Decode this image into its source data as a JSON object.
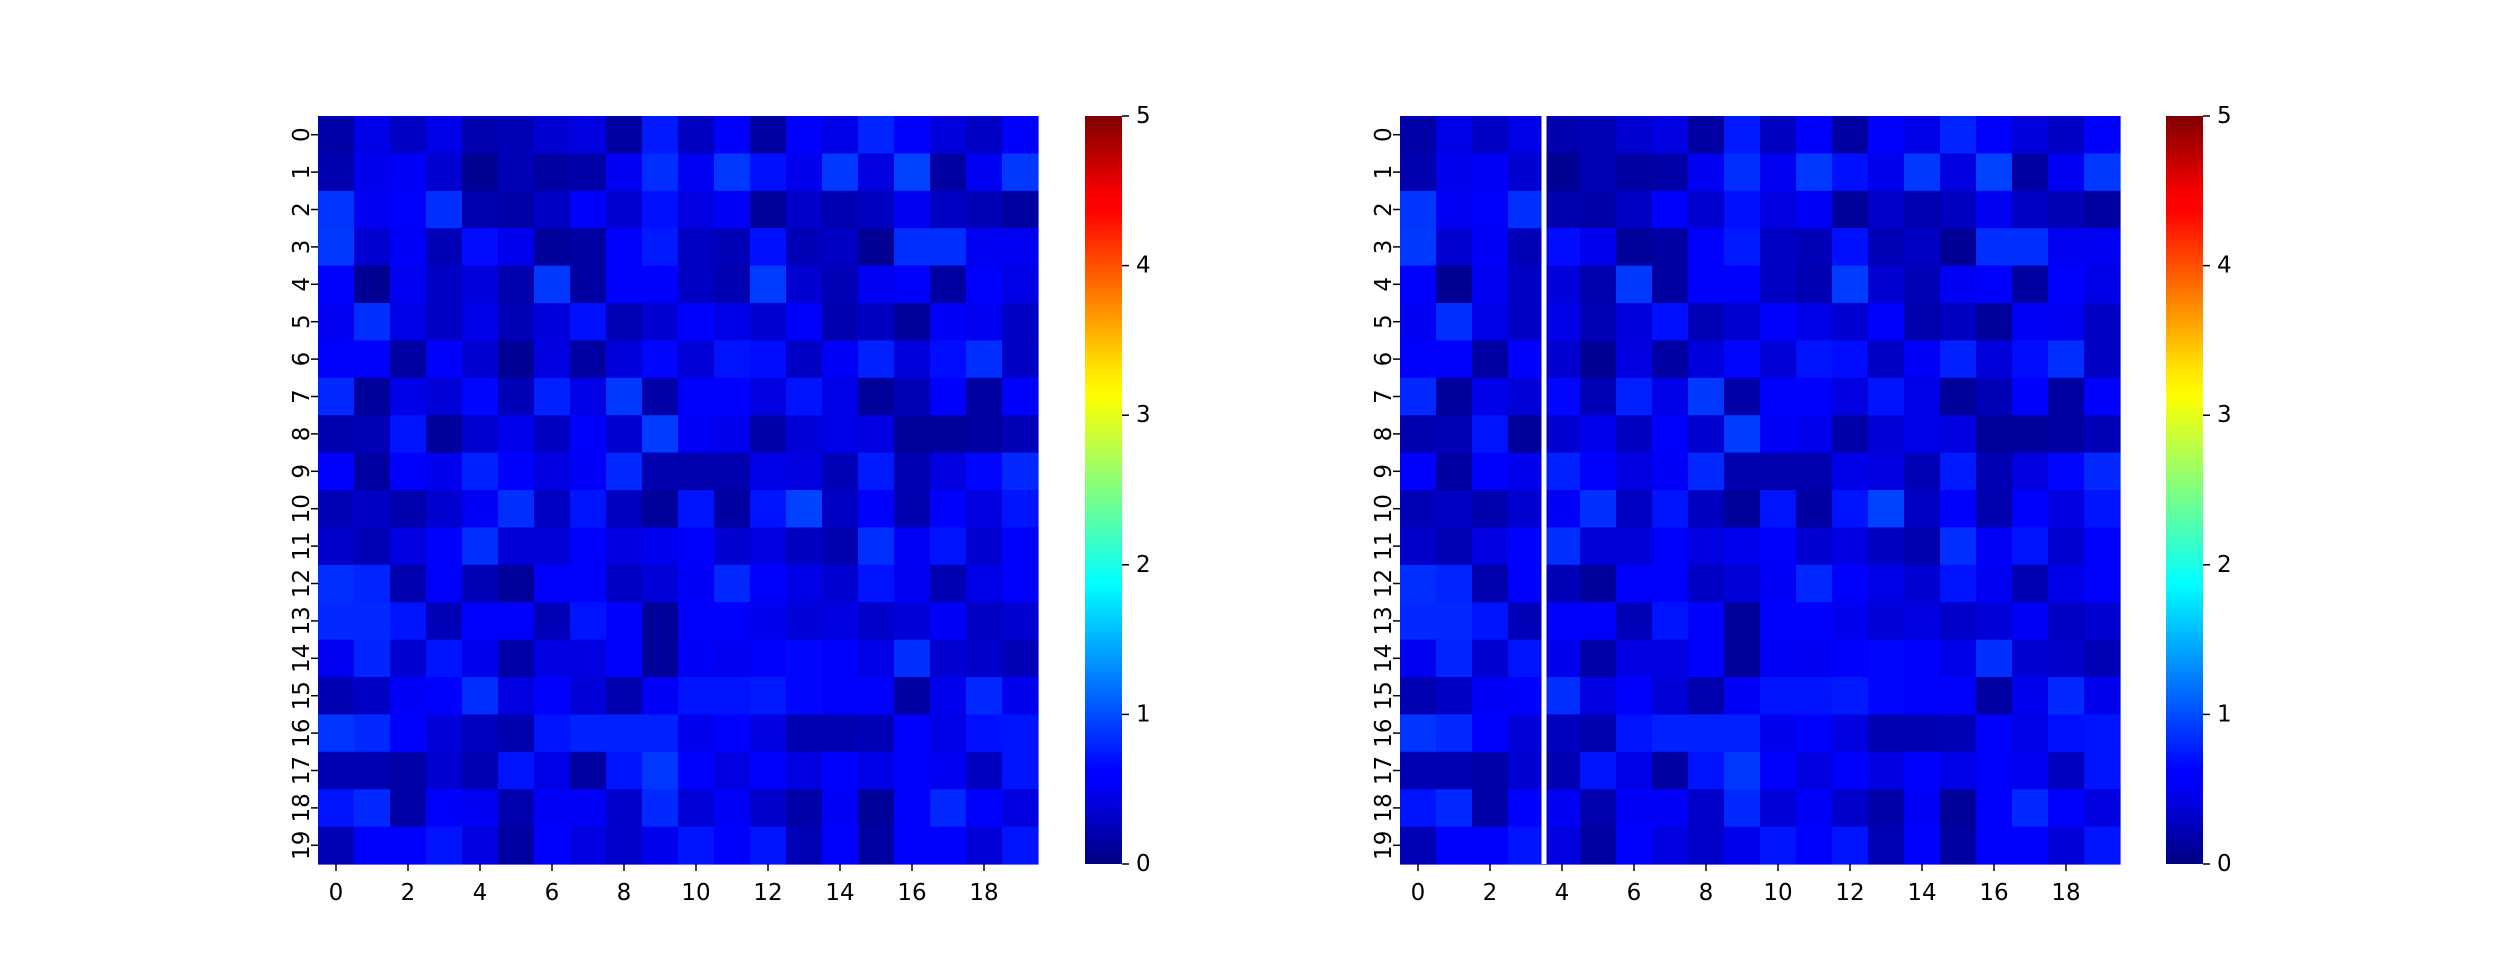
{
  "chart_data": [
    {
      "type": "heatmap",
      "panel": "left",
      "colormap": "jet",
      "vmin": 0,
      "vmax": 5,
      "n_rows": 20,
      "n_cols": 20,
      "x_ticks": [
        "0",
        "2",
        "4",
        "6",
        "8",
        "10",
        "12",
        "14",
        "16",
        "18"
      ],
      "y_ticks": [
        "0",
        "1",
        "2",
        "3",
        "4",
        "5",
        "6",
        "7",
        "8",
        "9",
        "10",
        "11",
        "12",
        "13",
        "14",
        "15",
        "16",
        "17",
        "18",
        "19"
      ],
      "colorbar_ticks": [
        "0",
        "1",
        "2",
        "3",
        "4",
        "5"
      ],
      "values": [
        [
          0.18,
          0.45,
          0.3,
          0.45,
          0.2,
          0.25,
          0.35,
          0.42,
          0.15,
          0.75,
          0.28,
          0.55,
          0.15,
          0.6,
          0.45,
          0.8,
          0.62,
          0.4,
          0.3,
          0.6
        ],
        [
          0.2,
          0.48,
          0.52,
          0.35,
          0.08,
          0.25,
          0.15,
          0.18,
          0.5,
          0.85,
          0.5,
          0.9,
          0.7,
          0.48,
          0.9,
          0.42,
          0.95,
          0.15,
          0.5,
          0.9
        ],
        [
          0.88,
          0.5,
          0.55,
          0.85,
          0.2,
          0.18,
          0.3,
          0.6,
          0.35,
          0.7,
          0.42,
          0.52,
          0.12,
          0.32,
          0.22,
          0.28,
          0.5,
          0.3,
          0.25,
          0.15
        ],
        [
          0.9,
          0.35,
          0.52,
          0.25,
          0.68,
          0.48,
          0.12,
          0.15,
          0.6,
          0.75,
          0.3,
          0.25,
          0.7,
          0.25,
          0.3,
          0.1,
          0.85,
          0.85,
          0.5,
          0.5
        ],
        [
          0.55,
          0.08,
          0.5,
          0.3,
          0.4,
          0.2,
          0.9,
          0.15,
          0.55,
          0.55,
          0.3,
          0.22,
          0.92,
          0.35,
          0.25,
          0.5,
          0.6,
          0.15,
          0.55,
          0.45
        ],
        [
          0.5,
          0.85,
          0.45,
          0.3,
          0.45,
          0.25,
          0.4,
          0.7,
          0.25,
          0.35,
          0.55,
          0.45,
          0.35,
          0.55,
          0.2,
          0.28,
          0.12,
          0.52,
          0.5,
          0.3
        ],
        [
          0.62,
          0.6,
          0.15,
          0.62,
          0.35,
          0.1,
          0.42,
          0.15,
          0.4,
          0.65,
          0.38,
          0.72,
          0.68,
          0.3,
          0.52,
          0.78,
          0.4,
          0.68,
          0.85,
          0.3
        ],
        [
          0.82,
          0.12,
          0.45,
          0.38,
          0.65,
          0.25,
          0.78,
          0.45,
          0.9,
          0.18,
          0.55,
          0.62,
          0.42,
          0.72,
          0.45,
          0.12,
          0.25,
          0.62,
          0.15,
          0.6
        ],
        [
          0.2,
          0.25,
          0.72,
          0.12,
          0.35,
          0.48,
          0.28,
          0.55,
          0.35,
          0.92,
          0.52,
          0.48,
          0.18,
          0.38,
          0.45,
          0.42,
          0.12,
          0.12,
          0.15,
          0.25
        ],
        [
          0.62,
          0.15,
          0.55,
          0.48,
          0.78,
          0.55,
          0.42,
          0.52,
          0.82,
          0.2,
          0.2,
          0.2,
          0.45,
          0.42,
          0.25,
          0.75,
          0.22,
          0.42,
          0.65,
          0.82
        ],
        [
          0.25,
          0.3,
          0.2,
          0.35,
          0.52,
          0.85,
          0.3,
          0.72,
          0.28,
          0.12,
          0.72,
          0.15,
          0.72,
          0.95,
          0.3,
          0.55,
          0.2,
          0.62,
          0.42,
          0.72
        ],
        [
          0.32,
          0.25,
          0.42,
          0.62,
          0.85,
          0.38,
          0.38,
          0.62,
          0.42,
          0.48,
          0.62,
          0.35,
          0.42,
          0.28,
          0.2,
          0.85,
          0.52,
          0.72,
          0.35,
          0.55
        ],
        [
          0.85,
          0.8,
          0.2,
          0.62,
          0.25,
          0.12,
          0.55,
          0.55,
          0.3,
          0.38,
          0.52,
          0.82,
          0.62,
          0.45,
          0.35,
          0.72,
          0.5,
          0.22,
          0.45,
          0.62
        ],
        [
          0.82,
          0.82,
          0.72,
          0.25,
          0.62,
          0.62,
          0.25,
          0.72,
          0.62,
          0.12,
          0.55,
          0.55,
          0.48,
          0.38,
          0.42,
          0.32,
          0.38,
          0.52,
          0.3,
          0.35
        ],
        [
          0.5,
          0.8,
          0.35,
          0.72,
          0.48,
          0.18,
          0.42,
          0.42,
          0.55,
          0.12,
          0.52,
          0.5,
          0.55,
          0.65,
          0.6,
          0.45,
          0.85,
          0.35,
          0.32,
          0.25
        ],
        [
          0.22,
          0.3,
          0.52,
          0.62,
          0.85,
          0.42,
          0.55,
          0.38,
          0.2,
          0.52,
          0.72,
          0.72,
          0.75,
          0.65,
          0.55,
          0.55,
          0.15,
          0.48,
          0.82,
          0.48
        ],
        [
          0.88,
          0.82,
          0.55,
          0.38,
          0.28,
          0.2,
          0.72,
          0.78,
          0.78,
          0.78,
          0.48,
          0.55,
          0.42,
          0.22,
          0.22,
          0.25,
          0.62,
          0.45,
          0.7,
          0.72
        ],
        [
          0.22,
          0.22,
          0.18,
          0.35,
          0.22,
          0.72,
          0.45,
          0.15,
          0.72,
          0.9,
          0.6,
          0.42,
          0.55,
          0.42,
          0.55,
          0.45,
          0.62,
          0.5,
          0.28,
          0.72
        ],
        [
          0.72,
          0.82,
          0.18,
          0.55,
          0.5,
          0.2,
          0.52,
          0.52,
          0.32,
          0.82,
          0.38,
          0.52,
          0.32,
          0.18,
          0.52,
          0.12,
          0.62,
          0.82,
          0.55,
          0.42
        ],
        [
          0.25,
          0.62,
          0.62,
          0.72,
          0.42,
          0.15,
          0.55,
          0.42,
          0.32,
          0.48,
          0.72,
          0.55,
          0.72,
          0.25,
          0.62,
          0.15,
          0.55,
          0.55,
          0.38,
          0.72
        ]
      ]
    },
    {
      "type": "heatmap",
      "panel": "right",
      "colormap": "jet",
      "vmin": 0,
      "vmax": 5,
      "n_rows": 20,
      "n_cols": 20,
      "vertical_separator_after_column": 3,
      "x_ticks": [
        "0",
        "2",
        "4",
        "6",
        "8",
        "10",
        "12",
        "14",
        "16",
        "18"
      ],
      "y_ticks": [
        "0",
        "1",
        "2",
        "3",
        "4",
        "5",
        "6",
        "7",
        "8",
        "9",
        "10",
        "11",
        "12",
        "13",
        "14",
        "15",
        "16",
        "17",
        "18",
        "19"
      ],
      "colorbar_ticks": [
        "0",
        "1",
        "2",
        "3",
        "4",
        "5"
      ],
      "values": [
        [
          0.18,
          0.45,
          0.3,
          0.45,
          0.2,
          0.25,
          0.35,
          0.42,
          0.15,
          0.75,
          0.28,
          0.55,
          0.15,
          0.6,
          0.45,
          0.8,
          0.62,
          0.4,
          0.3,
          0.6
        ],
        [
          0.2,
          0.48,
          0.52,
          0.35,
          0.08,
          0.25,
          0.15,
          0.18,
          0.5,
          0.85,
          0.5,
          0.9,
          0.7,
          0.48,
          0.9,
          0.42,
          0.95,
          0.15,
          0.5,
          0.9
        ],
        [
          0.88,
          0.5,
          0.55,
          0.85,
          0.2,
          0.18,
          0.3,
          0.6,
          0.35,
          0.7,
          0.42,
          0.52,
          0.12,
          0.32,
          0.22,
          0.28,
          0.5,
          0.3,
          0.25,
          0.15
        ],
        [
          0.9,
          0.35,
          0.52,
          0.25,
          0.68,
          0.48,
          0.12,
          0.15,
          0.6,
          0.75,
          0.3,
          0.25,
          0.7,
          0.25,
          0.3,
          0.1,
          0.85,
          0.85,
          0.5,
          0.5
        ],
        [
          0.55,
          0.08,
          0.5,
          0.3,
          0.4,
          0.2,
          0.9,
          0.15,
          0.55,
          0.55,
          0.3,
          0.22,
          0.92,
          0.35,
          0.25,
          0.5,
          0.6,
          0.15,
          0.55,
          0.45
        ],
        [
          0.5,
          0.85,
          0.45,
          0.3,
          0.45,
          0.25,
          0.4,
          0.7,
          0.25,
          0.35,
          0.55,
          0.45,
          0.35,
          0.55,
          0.2,
          0.28,
          0.12,
          0.52,
          0.5,
          0.3
        ],
        [
          0.62,
          0.6,
          0.15,
          0.62,
          0.35,
          0.1,
          0.42,
          0.15,
          0.4,
          0.65,
          0.38,
          0.72,
          0.68,
          0.3,
          0.52,
          0.78,
          0.4,
          0.68,
          0.85,
          0.3
        ],
        [
          0.82,
          0.12,
          0.45,
          0.38,
          0.65,
          0.25,
          0.78,
          0.45,
          0.9,
          0.18,
          0.55,
          0.62,
          0.42,
          0.72,
          0.45,
          0.12,
          0.25,
          0.62,
          0.15,
          0.6
        ],
        [
          0.2,
          0.25,
          0.72,
          0.12,
          0.35,
          0.48,
          0.28,
          0.55,
          0.35,
          0.92,
          0.52,
          0.48,
          0.18,
          0.38,
          0.45,
          0.42,
          0.12,
          0.12,
          0.15,
          0.25
        ],
        [
          0.62,
          0.15,
          0.55,
          0.48,
          0.78,
          0.55,
          0.42,
          0.52,
          0.82,
          0.2,
          0.2,
          0.2,
          0.45,
          0.42,
          0.25,
          0.75,
          0.22,
          0.42,
          0.65,
          0.82
        ],
        [
          0.25,
          0.3,
          0.2,
          0.35,
          0.52,
          0.85,
          0.3,
          0.72,
          0.28,
          0.12,
          0.72,
          0.15,
          0.72,
          0.95,
          0.3,
          0.55,
          0.2,
          0.62,
          0.42,
          0.72
        ],
        [
          0.32,
          0.25,
          0.42,
          0.62,
          0.85,
          0.38,
          0.38,
          0.62,
          0.42,
          0.48,
          0.62,
          0.35,
          0.42,
          0.28,
          0.2,
          0.85,
          0.52,
          0.72,
          0.35,
          0.55
        ],
        [
          0.85,
          0.8,
          0.2,
          0.62,
          0.25,
          0.12,
          0.55,
          0.55,
          0.3,
          0.38,
          0.52,
          0.82,
          0.62,
          0.45,
          0.35,
          0.72,
          0.5,
          0.22,
          0.45,
          0.62
        ],
        [
          0.82,
          0.82,
          0.72,
          0.25,
          0.62,
          0.62,
          0.25,
          0.72,
          0.62,
          0.12,
          0.55,
          0.55,
          0.48,
          0.38,
          0.42,
          0.32,
          0.38,
          0.52,
          0.3,
          0.35
        ],
        [
          0.5,
          0.8,
          0.35,
          0.72,
          0.48,
          0.18,
          0.42,
          0.42,
          0.55,
          0.12,
          0.52,
          0.5,
          0.55,
          0.65,
          0.6,
          0.45,
          0.85,
          0.35,
          0.32,
          0.25
        ],
        [
          0.22,
          0.3,
          0.52,
          0.62,
          0.85,
          0.42,
          0.55,
          0.38,
          0.2,
          0.52,
          0.72,
          0.72,
          0.75,
          0.65,
          0.55,
          0.55,
          0.15,
          0.48,
          0.82,
          0.48
        ],
        [
          0.88,
          0.82,
          0.55,
          0.38,
          0.28,
          0.2,
          0.72,
          0.78,
          0.78,
          0.78,
          0.48,
          0.55,
          0.42,
          0.22,
          0.22,
          0.25,
          0.62,
          0.45,
          0.7,
          0.72
        ],
        [
          0.22,
          0.22,
          0.18,
          0.35,
          0.22,
          0.72,
          0.45,
          0.15,
          0.72,
          0.9,
          0.6,
          0.42,
          0.55,
          0.42,
          0.55,
          0.45,
          0.62,
          0.5,
          0.28,
          0.72
        ],
        [
          0.72,
          0.82,
          0.18,
          0.55,
          0.5,
          0.2,
          0.52,
          0.52,
          0.32,
          0.82,
          0.38,
          0.52,
          0.32,
          0.18,
          0.52,
          0.12,
          0.62,
          0.82,
          0.55,
          0.42
        ],
        [
          0.25,
          0.62,
          0.62,
          0.72,
          0.42,
          0.15,
          0.55,
          0.42,
          0.32,
          0.48,
          0.72,
          0.55,
          0.72,
          0.25,
          0.62,
          0.15,
          0.55,
          0.55,
          0.38,
          0.72
        ]
      ]
    }
  ]
}
